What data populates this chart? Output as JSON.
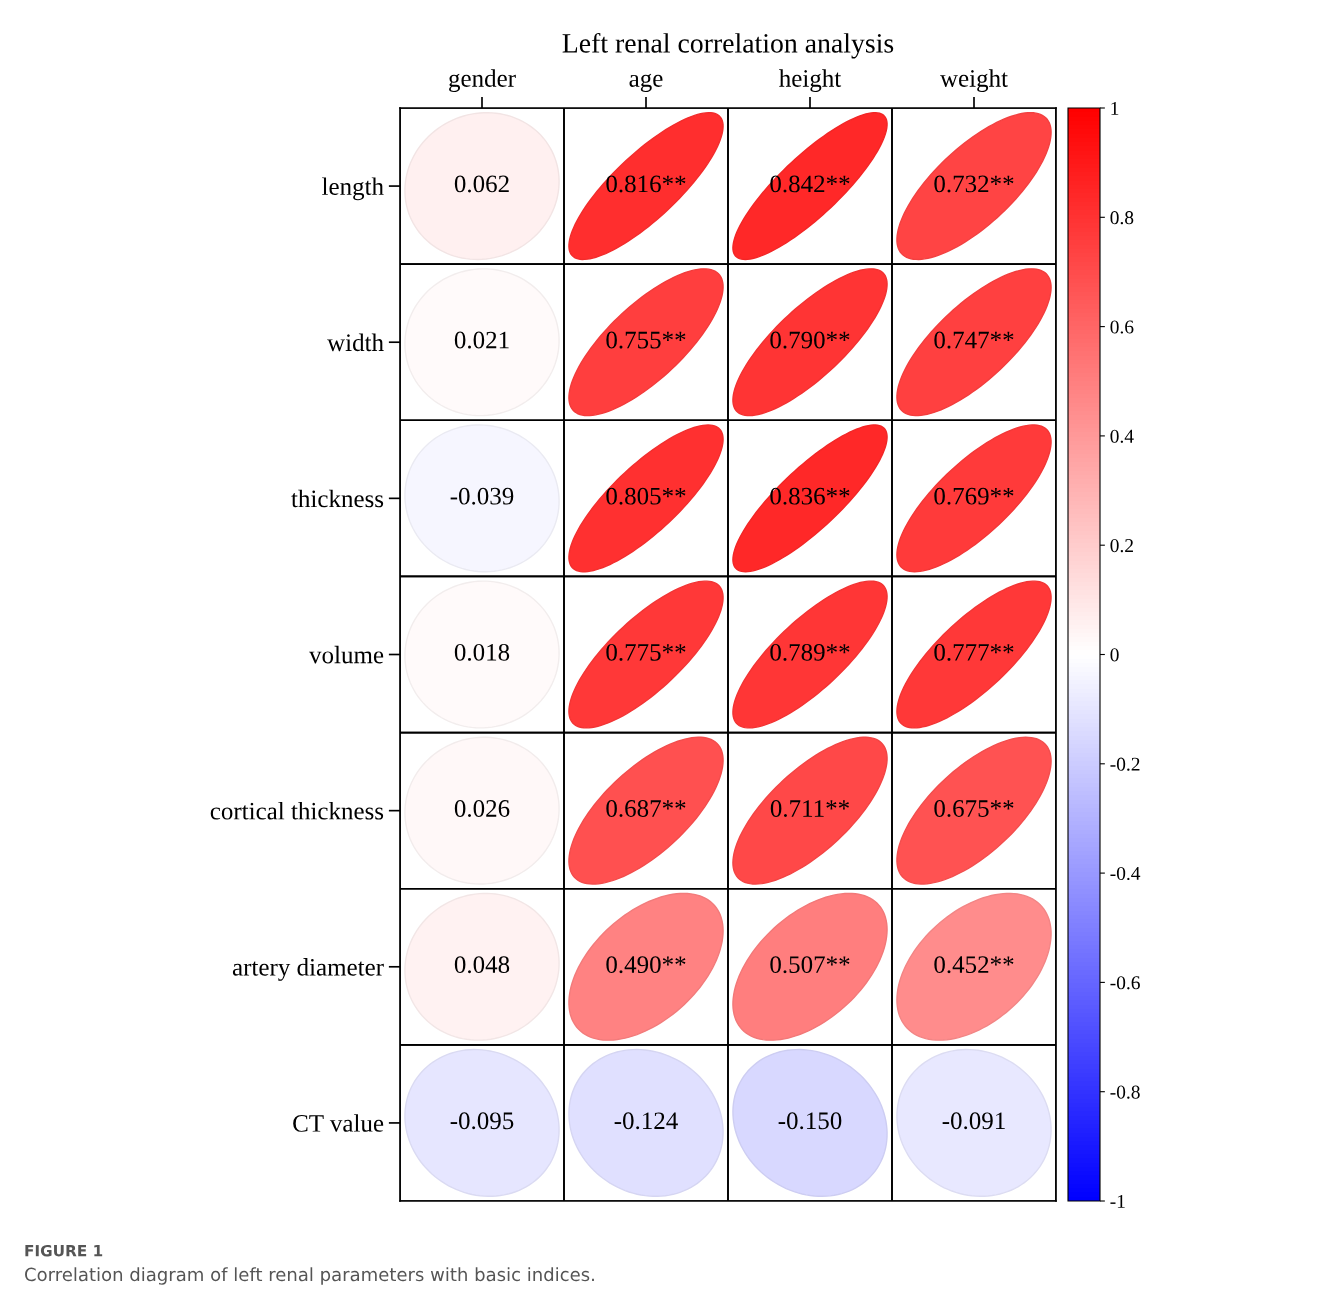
{
  "chart_data": {
    "type": "heatmap",
    "title": "Left renal correlation analysis",
    "categories": [
      "gender",
      "age",
      "height",
      "weight"
    ],
    "y_categories": [
      "length",
      "width",
      "thickness",
      "volume",
      "cortical thickness",
      "artery diameter",
      "CT value"
    ],
    "cells": [
      [
        0.062,
        0.816,
        0.842,
        0.732
      ],
      [
        0.021,
        0.755,
        0.79,
        0.747
      ],
      [
        -0.039,
        0.805,
        0.836,
        0.769
      ],
      [
        0.018,
        0.775,
        0.789,
        0.777
      ],
      [
        0.026,
        0.687,
        0.711,
        0.675
      ],
      [
        0.048,
        0.49,
        0.507,
        0.452
      ],
      [
        -0.095,
        -0.124,
        -0.15,
        -0.091
      ]
    ],
    "cell_labels": [
      [
        "0.062",
        "0.816**",
        "0.842**",
        "0.732**"
      ],
      [
        "0.021",
        "0.755**",
        "0.790**",
        "0.747**"
      ],
      [
        "-0.039",
        "0.805**",
        "0.836**",
        "0.769**"
      ],
      [
        "0.018",
        "0.775**",
        "0.789**",
        "0.777**"
      ],
      [
        "0.026",
        "0.687**",
        "0.711**",
        "0.675**"
      ],
      [
        "0.048",
        "0.490**",
        "0.507**",
        "0.452**"
      ],
      [
        "-0.095",
        "-0.124",
        "-0.150",
        "-0.091"
      ]
    ],
    "clim": [
      -1,
      1
    ],
    "cticks": [
      -1,
      -0.8,
      -0.6,
      -0.4,
      -0.2,
      0,
      0.2,
      0.4,
      0.6,
      0.8,
      1
    ],
    "annotations": [
      "FIGURE 1",
      "Correlation diagram of left renal parameters with basic indices."
    ]
  }
}
